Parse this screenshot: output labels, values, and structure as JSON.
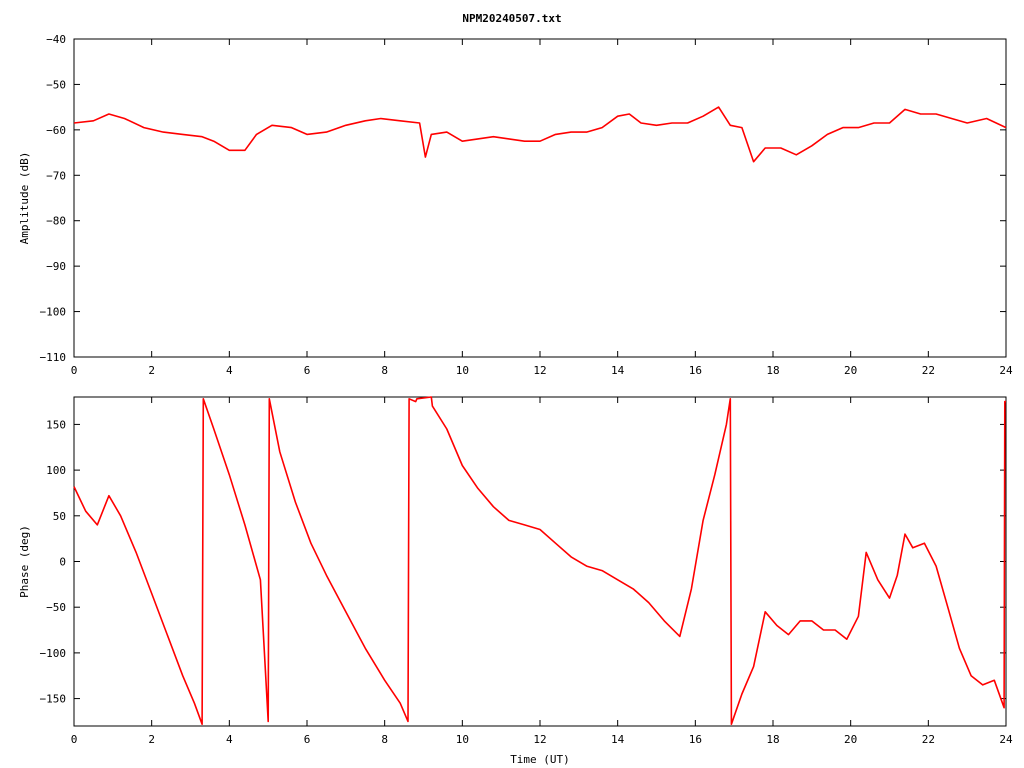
{
  "chart_data": [
    {
      "type": "line",
      "title": "NPM20240507.txt",
      "xlabel": "",
      "ylabel": "Amplitude (dB)",
      "xlim": [
        0,
        24
      ],
      "ylim": [
        -110,
        -40
      ],
      "xticks": [
        "0",
        "2",
        "4",
        "6",
        "8",
        "10",
        "12",
        "14",
        "16",
        "18",
        "20",
        "22",
        "24"
      ],
      "yticks": [
        "-40",
        "-50",
        "-60",
        "-70",
        "-80",
        "-90",
        "-100",
        "-110"
      ],
      "x": [
        0,
        0.5,
        0.9,
        1.3,
        1.8,
        2.3,
        2.8,
        3.3,
        3.6,
        4.0,
        4.4,
        4.7,
        5.1,
        5.6,
        6.0,
        6.5,
        7.0,
        7.5,
        7.9,
        8.4,
        8.9,
        9.05,
        9.2,
        9.6,
        10.0,
        10.4,
        10.8,
        11.2,
        11.6,
        12.0,
        12.4,
        12.8,
        13.2,
        13.6,
        14.0,
        14.3,
        14.6,
        15.0,
        15.4,
        15.8,
        16.2,
        16.6,
        16.9,
        17.2,
        17.5,
        17.8,
        18.2,
        18.6,
        19.0,
        19.4,
        19.8,
        20.2,
        20.6,
        21.0,
        21.4,
        21.8,
        22.2,
        22.6,
        23.0,
        23.5,
        24.0
      ],
      "series": [
        {
          "values": [
            -58.5,
            -58,
            -56.5,
            -57.5,
            -59.5,
            -60.5,
            -61,
            -61.5,
            -62.5,
            -64.5,
            -64.5,
            -61,
            -59,
            -59.5,
            -61,
            -60.5,
            -59,
            -58,
            -57.5,
            -58,
            -58.5,
            -66,
            -61,
            -60.5,
            -62.5,
            -62,
            -61.5,
            -62,
            -62.5,
            -62.5,
            -61,
            -60.5,
            -60.5,
            -59.5,
            -57,
            -56.5,
            -58.5,
            -59,
            -58.5,
            -58.5,
            -57,
            -55,
            -59,
            -59.5,
            -67,
            -64,
            -64,
            -65.5,
            -63.5,
            -61,
            -59.5,
            -59.5,
            -58.5,
            -58.5,
            -55.5,
            -56.5,
            -56.5,
            -57.5,
            -58.5,
            -57.5,
            -59.5
          ]
        }
      ]
    },
    {
      "type": "line",
      "title": "",
      "xlabel": "Time (UT)",
      "ylabel": "Phase (deg)",
      "xlim": [
        0,
        24
      ],
      "ylim": [
        -180,
        180
      ],
      "xticks": [
        "0",
        "2",
        "4",
        "6",
        "8",
        "10",
        "12",
        "14",
        "16",
        "18",
        "20",
        "22",
        "24"
      ],
      "yticks": [
        "150",
        "100",
        "50",
        "0",
        "-50",
        "-100",
        "-150"
      ],
      "x": [
        0,
        0.3,
        0.6,
        0.9,
        1.2,
        1.6,
        2.0,
        2.4,
        2.8,
        3.1,
        3.3,
        3.33,
        3.6,
        4.0,
        4.4,
        4.8,
        5.0,
        5.03,
        5.3,
        5.7,
        6.1,
        6.5,
        7.0,
        7.5,
        8.0,
        8.4,
        8.6,
        8.63,
        8.8,
        8.83,
        9.2,
        9.23,
        9.6,
        10.0,
        10.4,
        10.8,
        11.2,
        11.6,
        12.0,
        12.4,
        12.8,
        13.2,
        13.6,
        14.0,
        14.4,
        14.8,
        15.2,
        15.6,
        15.9,
        16.2,
        16.5,
        16.8,
        16.9,
        16.93,
        17.2,
        17.5,
        17.8,
        18.1,
        18.4,
        18.7,
        19.0,
        19.3,
        19.6,
        19.9,
        20.2,
        20.4,
        20.7,
        21.0,
        21.2,
        21.4,
        21.6,
        21.9,
        22.2,
        22.5,
        22.8,
        23.1,
        23.4,
        23.7,
        23.95,
        23.97,
        24.0
      ],
      "series": [
        {
          "values": [
            82,
            55,
            40,
            72,
            50,
            10,
            -35,
            -80,
            -125,
            -155,
            -178,
            178,
            145,
            95,
            40,
            -20,
            -175,
            178,
            120,
            65,
            20,
            -15,
            -55,
            -95,
            -130,
            -155,
            -175,
            178,
            175,
            178,
            180,
            170,
            145,
            105,
            80,
            60,
            45,
            40,
            35,
            20,
            5,
            -5,
            -10,
            -20,
            -30,
            -45,
            -65,
            -82,
            -30,
            45,
            95,
            150,
            178,
            -178,
            -145,
            -115,
            -55,
            -70,
            -80,
            -65,
            -65,
            -75,
            -75,
            -85,
            -60,
            10,
            -20,
            -40,
            -15,
            30,
            15,
            20,
            -5,
            -50,
            -95,
            -125,
            -135,
            -130,
            -160,
            175,
            175
          ]
        }
      ]
    }
  ]
}
